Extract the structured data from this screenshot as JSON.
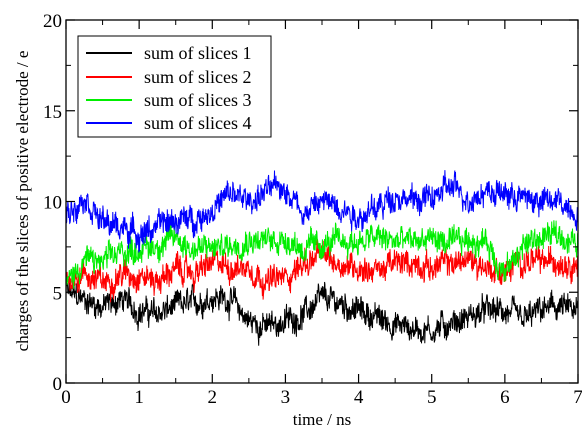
{
  "chart_data": {
    "type": "line",
    "title": "",
    "xlabel": "time / ns",
    "ylabel": "charges of the slices of positive electrode / e",
    "xlim": [
      0,
      7
    ],
    "ylim": [
      0,
      20
    ],
    "x_ticks": [
      "0",
      "1",
      "2",
      "3",
      "4",
      "5",
      "6",
      "7"
    ],
    "y_ticks": [
      "0",
      "5",
      "10",
      "15",
      "20"
    ],
    "grid": false,
    "legend_position": "top-left",
    "x": [
      0.0,
      0.25,
      0.5,
      0.75,
      1.0,
      1.25,
      1.5,
      1.75,
      2.0,
      2.25,
      2.5,
      2.75,
      3.0,
      3.25,
      3.5,
      3.75,
      4.0,
      4.25,
      4.5,
      4.75,
      5.0,
      5.25,
      5.5,
      5.75,
      6.0,
      6.25,
      6.5,
      6.75,
      7.0
    ],
    "series": [
      {
        "name": "sum of slices 1",
        "color": "#000000",
        "values": [
          5.0,
          4.6,
          4.2,
          4.6,
          4.0,
          3.8,
          4.2,
          4.4,
          4.8,
          4.6,
          3.4,
          3.1,
          3.4,
          3.8,
          4.6,
          4.4,
          4.0,
          3.6,
          3.2,
          3.0,
          2.9,
          3.3,
          3.6,
          4.0,
          3.9,
          3.4,
          4.0,
          4.2,
          3.8
        ]
      },
      {
        "name": "sum of slices 2",
        "color": "#ff0000",
        "values": [
          5.8,
          6.0,
          5.5,
          6.0,
          6.0,
          5.6,
          6.3,
          6.0,
          6.6,
          6.4,
          6.4,
          5.6,
          5.8,
          6.6,
          7.0,
          6.6,
          6.4,
          6.2,
          6.6,
          6.6,
          6.4,
          6.6,
          6.8,
          6.4,
          6.0,
          6.8,
          6.6,
          6.8,
          6.6
        ]
      },
      {
        "name": "sum of slices 3",
        "color": "#00ee00",
        "values": [
          5.4,
          6.8,
          6.6,
          7.2,
          7.4,
          7.6,
          8.0,
          7.4,
          7.4,
          7.6,
          8.0,
          7.8,
          8.0,
          7.4,
          7.6,
          7.8,
          7.8,
          8.0,
          7.8,
          7.8,
          8.0,
          7.6,
          7.9,
          7.8,
          6.0,
          7.6,
          8.0,
          8.2,
          7.6
        ]
      },
      {
        "name": "sum of slices 4",
        "color": "#0000ff",
        "values": [
          9.2,
          10.4,
          8.8,
          8.6,
          8.2,
          8.6,
          9.0,
          9.0,
          9.6,
          10.4,
          10.0,
          10.6,
          10.8,
          9.4,
          10.0,
          9.8,
          9.2,
          9.6,
          10.4,
          10.0,
          10.2,
          10.8,
          10.2,
          10.6,
          10.4,
          10.2,
          10.0,
          10.0,
          9.4
        ]
      }
    ]
  }
}
